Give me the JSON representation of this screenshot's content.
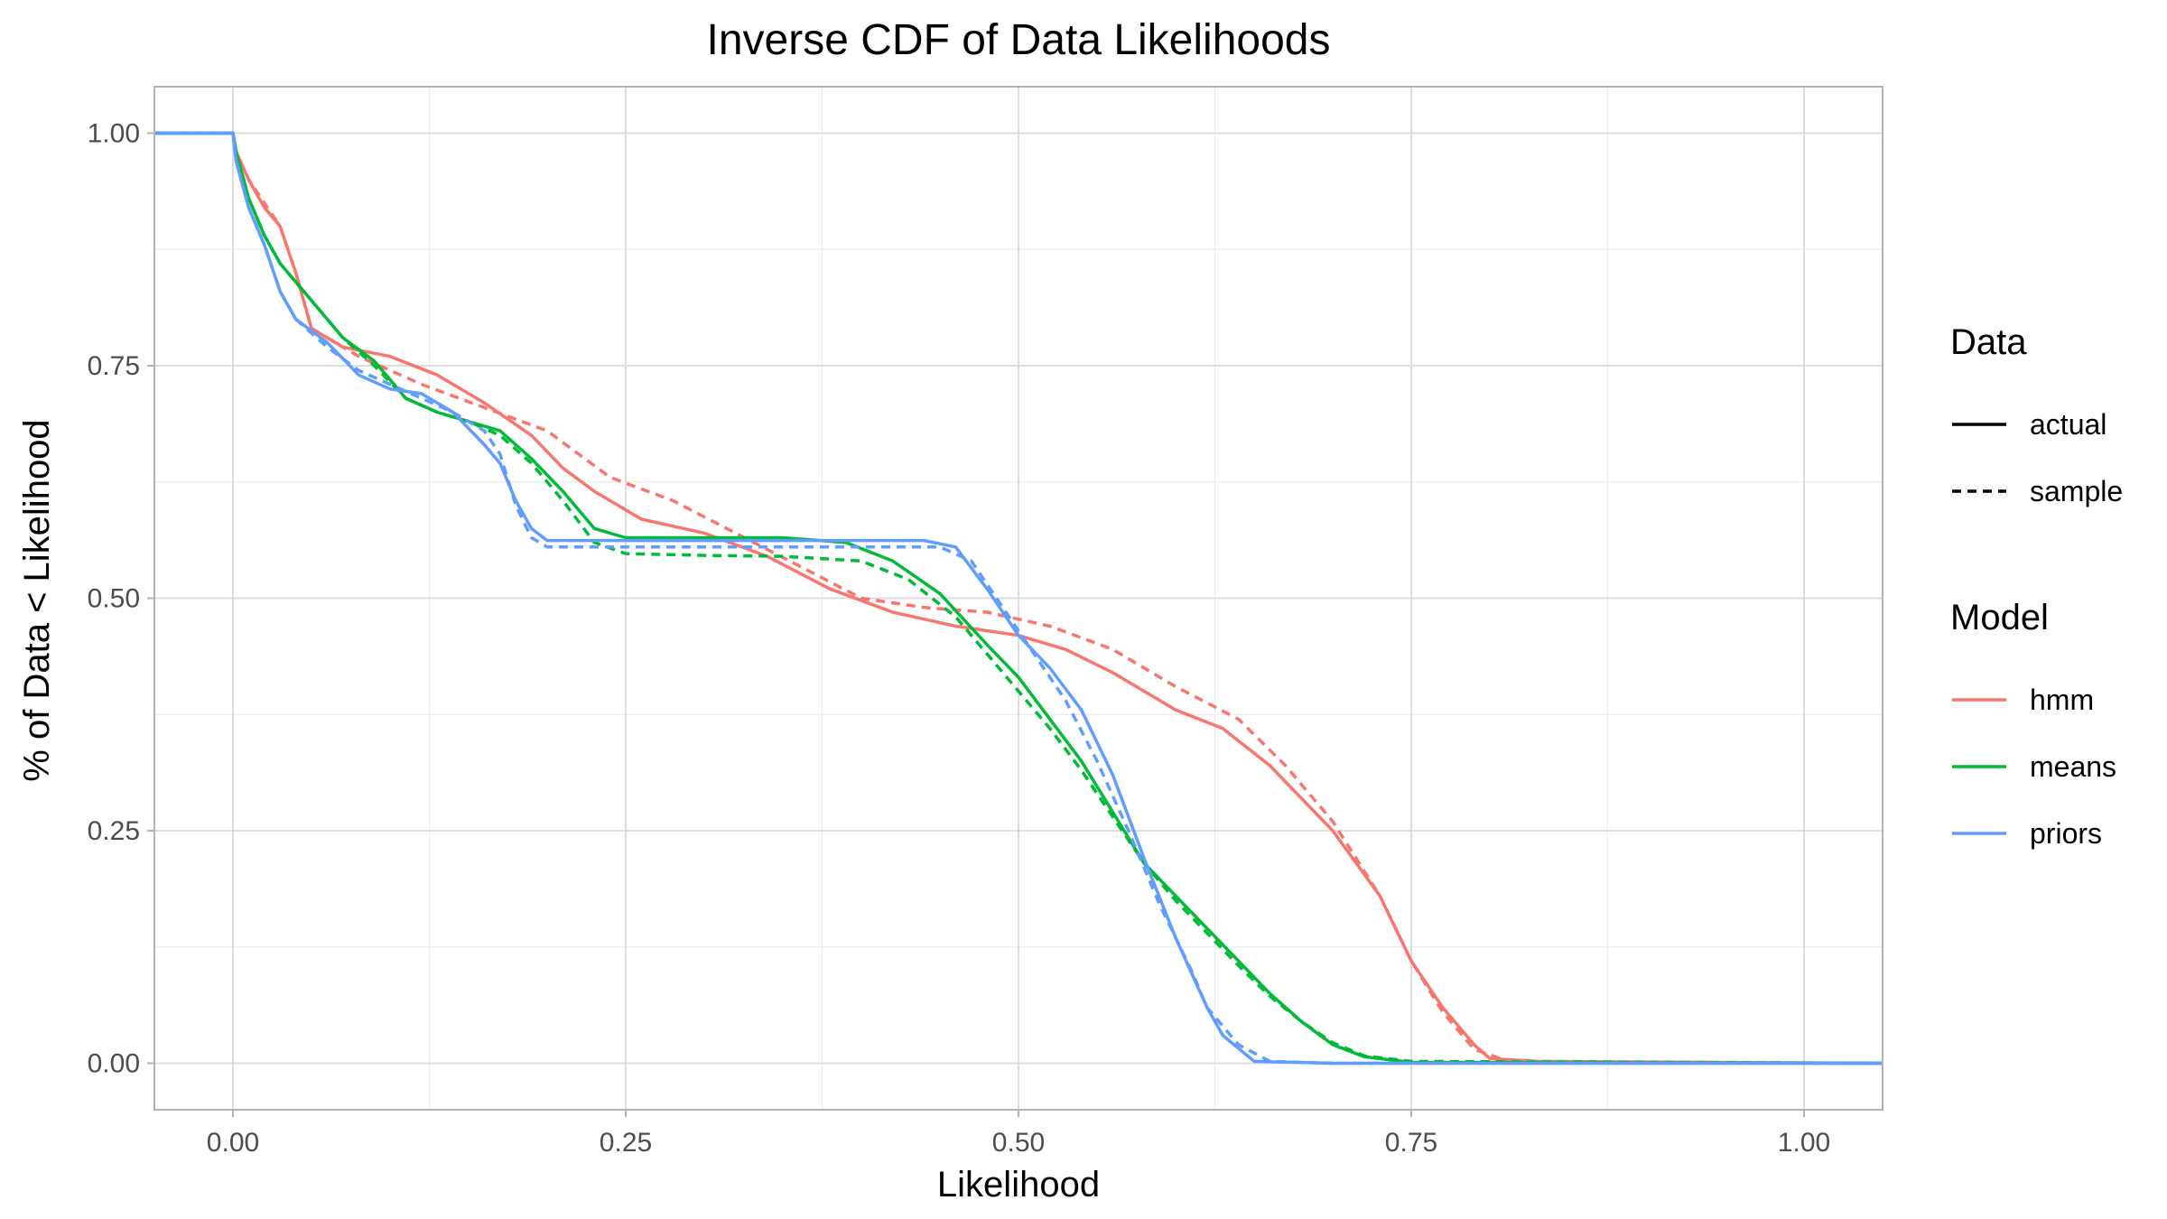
{
  "chart_data": {
    "type": "line",
    "title": "Inverse CDF of Data Likelihoods",
    "xlabel": "Likelihood",
    "ylabel": "% of Data < Likelihood",
    "xlim": [
      -0.05,
      1.05
    ],
    "ylim": [
      -0.05,
      1.05
    ],
    "x_ticks": [
      0,
      0.25,
      0.5,
      0.75,
      1.0
    ],
    "x_tick_labels": [
      "0.00",
      "0.25",
      "0.50",
      "0.75",
      "1.00"
    ],
    "y_ticks": [
      0,
      0.25,
      0.5,
      0.75,
      1.0
    ],
    "y_tick_labels": [
      "0.00",
      "0.25",
      "0.50",
      "0.75",
      "1.00"
    ],
    "grid": true,
    "legend_position": "right",
    "legends": [
      {
        "title": "Data",
        "entries": [
          {
            "label": "actual",
            "linetype": "solid",
            "color": "#000000"
          },
          {
            "label": "sample",
            "linetype": "dashed",
            "color": "#000000"
          }
        ]
      },
      {
        "title": "Model",
        "entries": [
          {
            "label": "hmm",
            "linetype": "solid",
            "color": "#F8766D"
          },
          {
            "label": "means",
            "linetype": "solid",
            "color": "#00BA38"
          },
          {
            "label": "priors",
            "linetype": "solid",
            "color": "#619CFF"
          }
        ]
      }
    ],
    "series": [
      {
        "name": "hmm",
        "data": "actual",
        "color": "#F8766D",
        "linetype": "solid",
        "points": [
          [
            -0.05,
            1.0
          ],
          [
            0.0,
            1.0
          ],
          [
            0.002,
            0.98
          ],
          [
            0.01,
            0.95
          ],
          [
            0.02,
            0.92
          ],
          [
            0.03,
            0.9
          ],
          [
            0.04,
            0.85
          ],
          [
            0.05,
            0.79
          ],
          [
            0.07,
            0.77
          ],
          [
            0.1,
            0.76
          ],
          [
            0.13,
            0.74
          ],
          [
            0.16,
            0.71
          ],
          [
            0.19,
            0.675
          ],
          [
            0.21,
            0.64
          ],
          [
            0.23,
            0.615
          ],
          [
            0.26,
            0.585
          ],
          [
            0.3,
            0.57
          ],
          [
            0.34,
            0.545
          ],
          [
            0.38,
            0.51
          ],
          [
            0.42,
            0.485
          ],
          [
            0.46,
            0.47
          ],
          [
            0.5,
            0.46
          ],
          [
            0.53,
            0.445
          ],
          [
            0.56,
            0.42
          ],
          [
            0.58,
            0.4
          ],
          [
            0.6,
            0.38
          ],
          [
            0.63,
            0.36
          ],
          [
            0.66,
            0.32
          ],
          [
            0.7,
            0.25
          ],
          [
            0.73,
            0.18
          ],
          [
            0.75,
            0.11
          ],
          [
            0.77,
            0.06
          ],
          [
            0.79,
            0.02
          ],
          [
            0.8,
            0.005
          ],
          [
            0.83,
            0.002
          ],
          [
            1.05,
            0.0
          ]
        ]
      },
      {
        "name": "hmm",
        "data": "sample",
        "color": "#F8766D",
        "linetype": "dashed",
        "points": [
          [
            -0.05,
            1.0
          ],
          [
            0.0,
            1.0
          ],
          [
            0.002,
            0.98
          ],
          [
            0.01,
            0.95
          ],
          [
            0.02,
            0.925
          ],
          [
            0.03,
            0.9
          ],
          [
            0.04,
            0.85
          ],
          [
            0.05,
            0.79
          ],
          [
            0.08,
            0.76
          ],
          [
            0.12,
            0.73
          ],
          [
            0.16,
            0.705
          ],
          [
            0.2,
            0.68
          ],
          [
            0.24,
            0.63
          ],
          [
            0.28,
            0.605
          ],
          [
            0.32,
            0.57
          ],
          [
            0.36,
            0.535
          ],
          [
            0.4,
            0.5
          ],
          [
            0.44,
            0.49
          ],
          [
            0.48,
            0.485
          ],
          [
            0.52,
            0.47
          ],
          [
            0.56,
            0.445
          ],
          [
            0.6,
            0.405
          ],
          [
            0.64,
            0.37
          ],
          [
            0.67,
            0.32
          ],
          [
            0.7,
            0.26
          ],
          [
            0.73,
            0.18
          ],
          [
            0.75,
            0.11
          ],
          [
            0.77,
            0.055
          ],
          [
            0.79,
            0.015
          ],
          [
            0.81,
            0.003
          ],
          [
            0.84,
            0.001
          ],
          [
            1.05,
            0.0
          ]
        ]
      },
      {
        "name": "means",
        "data": "actual",
        "color": "#00BA38",
        "linetype": "solid",
        "points": [
          [
            -0.05,
            1.0
          ],
          [
            0.0,
            1.0
          ],
          [
            0.002,
            0.98
          ],
          [
            0.01,
            0.93
          ],
          [
            0.02,
            0.89
          ],
          [
            0.03,
            0.86
          ],
          [
            0.05,
            0.82
          ],
          [
            0.07,
            0.78
          ],
          [
            0.09,
            0.755
          ],
          [
            0.11,
            0.715
          ],
          [
            0.13,
            0.7
          ],
          [
            0.15,
            0.69
          ],
          [
            0.17,
            0.68
          ],
          [
            0.19,
            0.65
          ],
          [
            0.21,
            0.615
          ],
          [
            0.23,
            0.575
          ],
          [
            0.25,
            0.565
          ],
          [
            0.3,
            0.565
          ],
          [
            0.35,
            0.565
          ],
          [
            0.39,
            0.56
          ],
          [
            0.42,
            0.54
          ],
          [
            0.45,
            0.505
          ],
          [
            0.48,
            0.45
          ],
          [
            0.5,
            0.415
          ],
          [
            0.52,
            0.37
          ],
          [
            0.54,
            0.325
          ],
          [
            0.56,
            0.27
          ],
          [
            0.58,
            0.215
          ],
          [
            0.6,
            0.18
          ],
          [
            0.62,
            0.145
          ],
          [
            0.64,
            0.11
          ],
          [
            0.66,
            0.075
          ],
          [
            0.68,
            0.045
          ],
          [
            0.7,
            0.02
          ],
          [
            0.72,
            0.007
          ],
          [
            0.75,
            0.001
          ],
          [
            1.05,
            0.0
          ]
        ]
      },
      {
        "name": "means",
        "data": "sample",
        "color": "#00BA38",
        "linetype": "dashed",
        "points": [
          [
            -0.05,
            1.0
          ],
          [
            0.0,
            1.0
          ],
          [
            0.002,
            0.98
          ],
          [
            0.01,
            0.93
          ],
          [
            0.02,
            0.89
          ],
          [
            0.03,
            0.86
          ],
          [
            0.05,
            0.82
          ],
          [
            0.07,
            0.78
          ],
          [
            0.09,
            0.75
          ],
          [
            0.11,
            0.715
          ],
          [
            0.13,
            0.7
          ],
          [
            0.15,
            0.69
          ],
          [
            0.17,
            0.675
          ],
          [
            0.19,
            0.645
          ],
          [
            0.21,
            0.605
          ],
          [
            0.23,
            0.56
          ],
          [
            0.25,
            0.548
          ],
          [
            0.3,
            0.546
          ],
          [
            0.35,
            0.545
          ],
          [
            0.4,
            0.54
          ],
          [
            0.43,
            0.52
          ],
          [
            0.46,
            0.48
          ],
          [
            0.48,
            0.44
          ],
          [
            0.5,
            0.4
          ],
          [
            0.52,
            0.36
          ],
          [
            0.54,
            0.315
          ],
          [
            0.56,
            0.265
          ],
          [
            0.58,
            0.215
          ],
          [
            0.6,
            0.175
          ],
          [
            0.62,
            0.14
          ],
          [
            0.64,
            0.105
          ],
          [
            0.66,
            0.072
          ],
          [
            0.68,
            0.045
          ],
          [
            0.7,
            0.022
          ],
          [
            0.72,
            0.008
          ],
          [
            0.75,
            0.002
          ],
          [
            1.05,
            0.0
          ]
        ]
      },
      {
        "name": "priors",
        "data": "actual",
        "color": "#619CFF",
        "linetype": "solid",
        "points": [
          [
            -0.05,
            1.0
          ],
          [
            0.0,
            1.0
          ],
          [
            0.002,
            0.97
          ],
          [
            0.01,
            0.92
          ],
          [
            0.02,
            0.88
          ],
          [
            0.03,
            0.83
          ],
          [
            0.04,
            0.8
          ],
          [
            0.06,
            0.775
          ],
          [
            0.08,
            0.74
          ],
          [
            0.1,
            0.725
          ],
          [
            0.12,
            0.72
          ],
          [
            0.14,
            0.7
          ],
          [
            0.16,
            0.665
          ],
          [
            0.17,
            0.645
          ],
          [
            0.18,
            0.605
          ],
          [
            0.19,
            0.575
          ],
          [
            0.2,
            0.562
          ],
          [
            0.25,
            0.562
          ],
          [
            0.3,
            0.562
          ],
          [
            0.35,
            0.562
          ],
          [
            0.4,
            0.562
          ],
          [
            0.44,
            0.562
          ],
          [
            0.46,
            0.555
          ],
          [
            0.48,
            0.51
          ],
          [
            0.5,
            0.46
          ],
          [
            0.52,
            0.425
          ],
          [
            0.54,
            0.38
          ],
          [
            0.56,
            0.31
          ],
          [
            0.58,
            0.22
          ],
          [
            0.6,
            0.135
          ],
          [
            0.62,
            0.06
          ],
          [
            0.63,
            0.03
          ],
          [
            0.65,
            0.002
          ],
          [
            0.7,
            0.0
          ],
          [
            1.05,
            0.0
          ]
        ]
      },
      {
        "name": "priors",
        "data": "sample",
        "color": "#619CFF",
        "linetype": "dashed",
        "points": [
          [
            -0.05,
            1.0
          ],
          [
            0.0,
            1.0
          ],
          [
            0.002,
            0.97
          ],
          [
            0.01,
            0.92
          ],
          [
            0.02,
            0.88
          ],
          [
            0.03,
            0.83
          ],
          [
            0.04,
            0.8
          ],
          [
            0.06,
            0.77
          ],
          [
            0.08,
            0.745
          ],
          [
            0.1,
            0.73
          ],
          [
            0.12,
            0.715
          ],
          [
            0.14,
            0.7
          ],
          [
            0.16,
            0.68
          ],
          [
            0.17,
            0.655
          ],
          [
            0.18,
            0.6
          ],
          [
            0.19,
            0.565
          ],
          [
            0.2,
            0.555
          ],
          [
            0.25,
            0.555
          ],
          [
            0.3,
            0.555
          ],
          [
            0.35,
            0.555
          ],
          [
            0.4,
            0.555
          ],
          [
            0.45,
            0.555
          ],
          [
            0.47,
            0.54
          ],
          [
            0.49,
            0.49
          ],
          [
            0.51,
            0.44
          ],
          [
            0.53,
            0.39
          ],
          [
            0.55,
            0.325
          ],
          [
            0.57,
            0.25
          ],
          [
            0.59,
            0.17
          ],
          [
            0.61,
            0.1
          ],
          [
            0.62,
            0.06
          ],
          [
            0.64,
            0.02
          ],
          [
            0.66,
            0.002
          ],
          [
            0.7,
            0.0
          ],
          [
            1.05,
            0.0
          ]
        ]
      }
    ]
  }
}
